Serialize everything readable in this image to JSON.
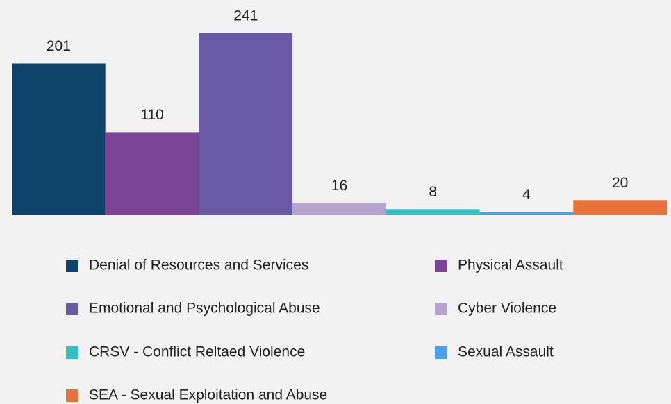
{
  "chart_data": {
    "type": "bar",
    "categories": [
      "Denial of Resources and Services",
      "Physical Assault",
      "Emotional and Psychological Abuse",
      "Cyber Violence",
      "CRSV - Conflict Reltaed Violence",
      "Sexual Assault",
      "SEA - Sexual Exploitation and Abuse"
    ],
    "values": [
      201,
      110,
      241,
      16,
      8,
      4,
      20
    ],
    "colors": [
      "#0e436b",
      "#7b4496",
      "#6a5aa6",
      "#b8a2d0",
      "#33bfc6",
      "#4aa2e8",
      "#e8733a"
    ],
    "legend": "bottom"
  }
}
